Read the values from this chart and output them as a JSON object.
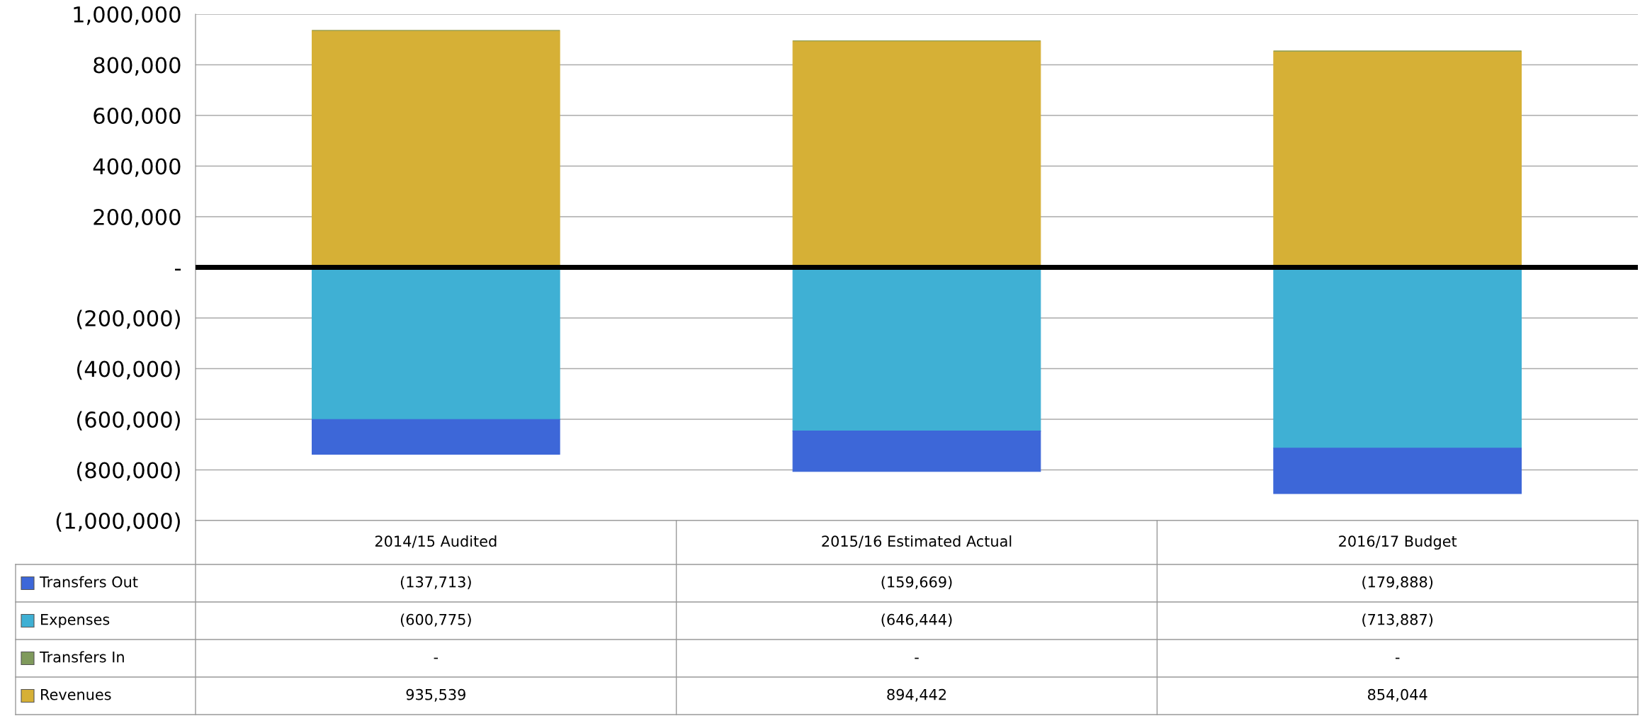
{
  "chart_data": {
    "type": "bar",
    "stacked": true,
    "categories": [
      "2014/15 Audited",
      "2015/16 Estimated Actual",
      "2016/17 Budget"
    ],
    "series": [
      {
        "name": "Revenues",
        "color": "#d6b036",
        "values": [
          935539,
          894442,
          854044
        ],
        "value_labels": [
          "935,539",
          "894,442",
          "854,044"
        ]
      },
      {
        "name": "Transfers In",
        "color": "#7f9a5c",
        "values": [
          0,
          0,
          0
        ],
        "value_labels": [
          "-",
          "-",
          "-"
        ]
      },
      {
        "name": "Expenses",
        "color": "#3fb0d4",
        "values": [
          -600775,
          -646444,
          -713887
        ],
        "value_labels": [
          "(600,775)",
          "(646,444)",
          "(713,887)"
        ]
      },
      {
        "name": "Transfers Out",
        "color": "#3d67d8",
        "values": [
          -137713,
          -159669,
          -179888
        ],
        "value_labels": [
          "(137,713)",
          "(159,669)",
          "(179,888)"
        ]
      }
    ],
    "ylim": [
      -1000000,
      1000000
    ],
    "yticks": [
      {
        "value": -1000000,
        "label": "(1,000,000)"
      },
      {
        "value": -800000,
        "label": "(800,000)"
      },
      {
        "value": -600000,
        "label": "(600,000)"
      },
      {
        "value": -400000,
        "label": "(400,000)"
      },
      {
        "value": -200000,
        "label": "(200,000)"
      },
      {
        "value": 0,
        "label": "-"
      },
      {
        "value": 200000,
        "label": "200,000"
      },
      {
        "value": 400000,
        "label": "400,000"
      },
      {
        "value": 600000,
        "label": "600,000"
      },
      {
        "value": 800000,
        "label": "800,000"
      },
      {
        "value": 1000000,
        "label": "1,000,000"
      }
    ],
    "grid": "y",
    "legend": "bottom",
    "ref_lines": [
      {
        "axis": "y",
        "value": 0,
        "color": "#000000"
      }
    ]
  }
}
